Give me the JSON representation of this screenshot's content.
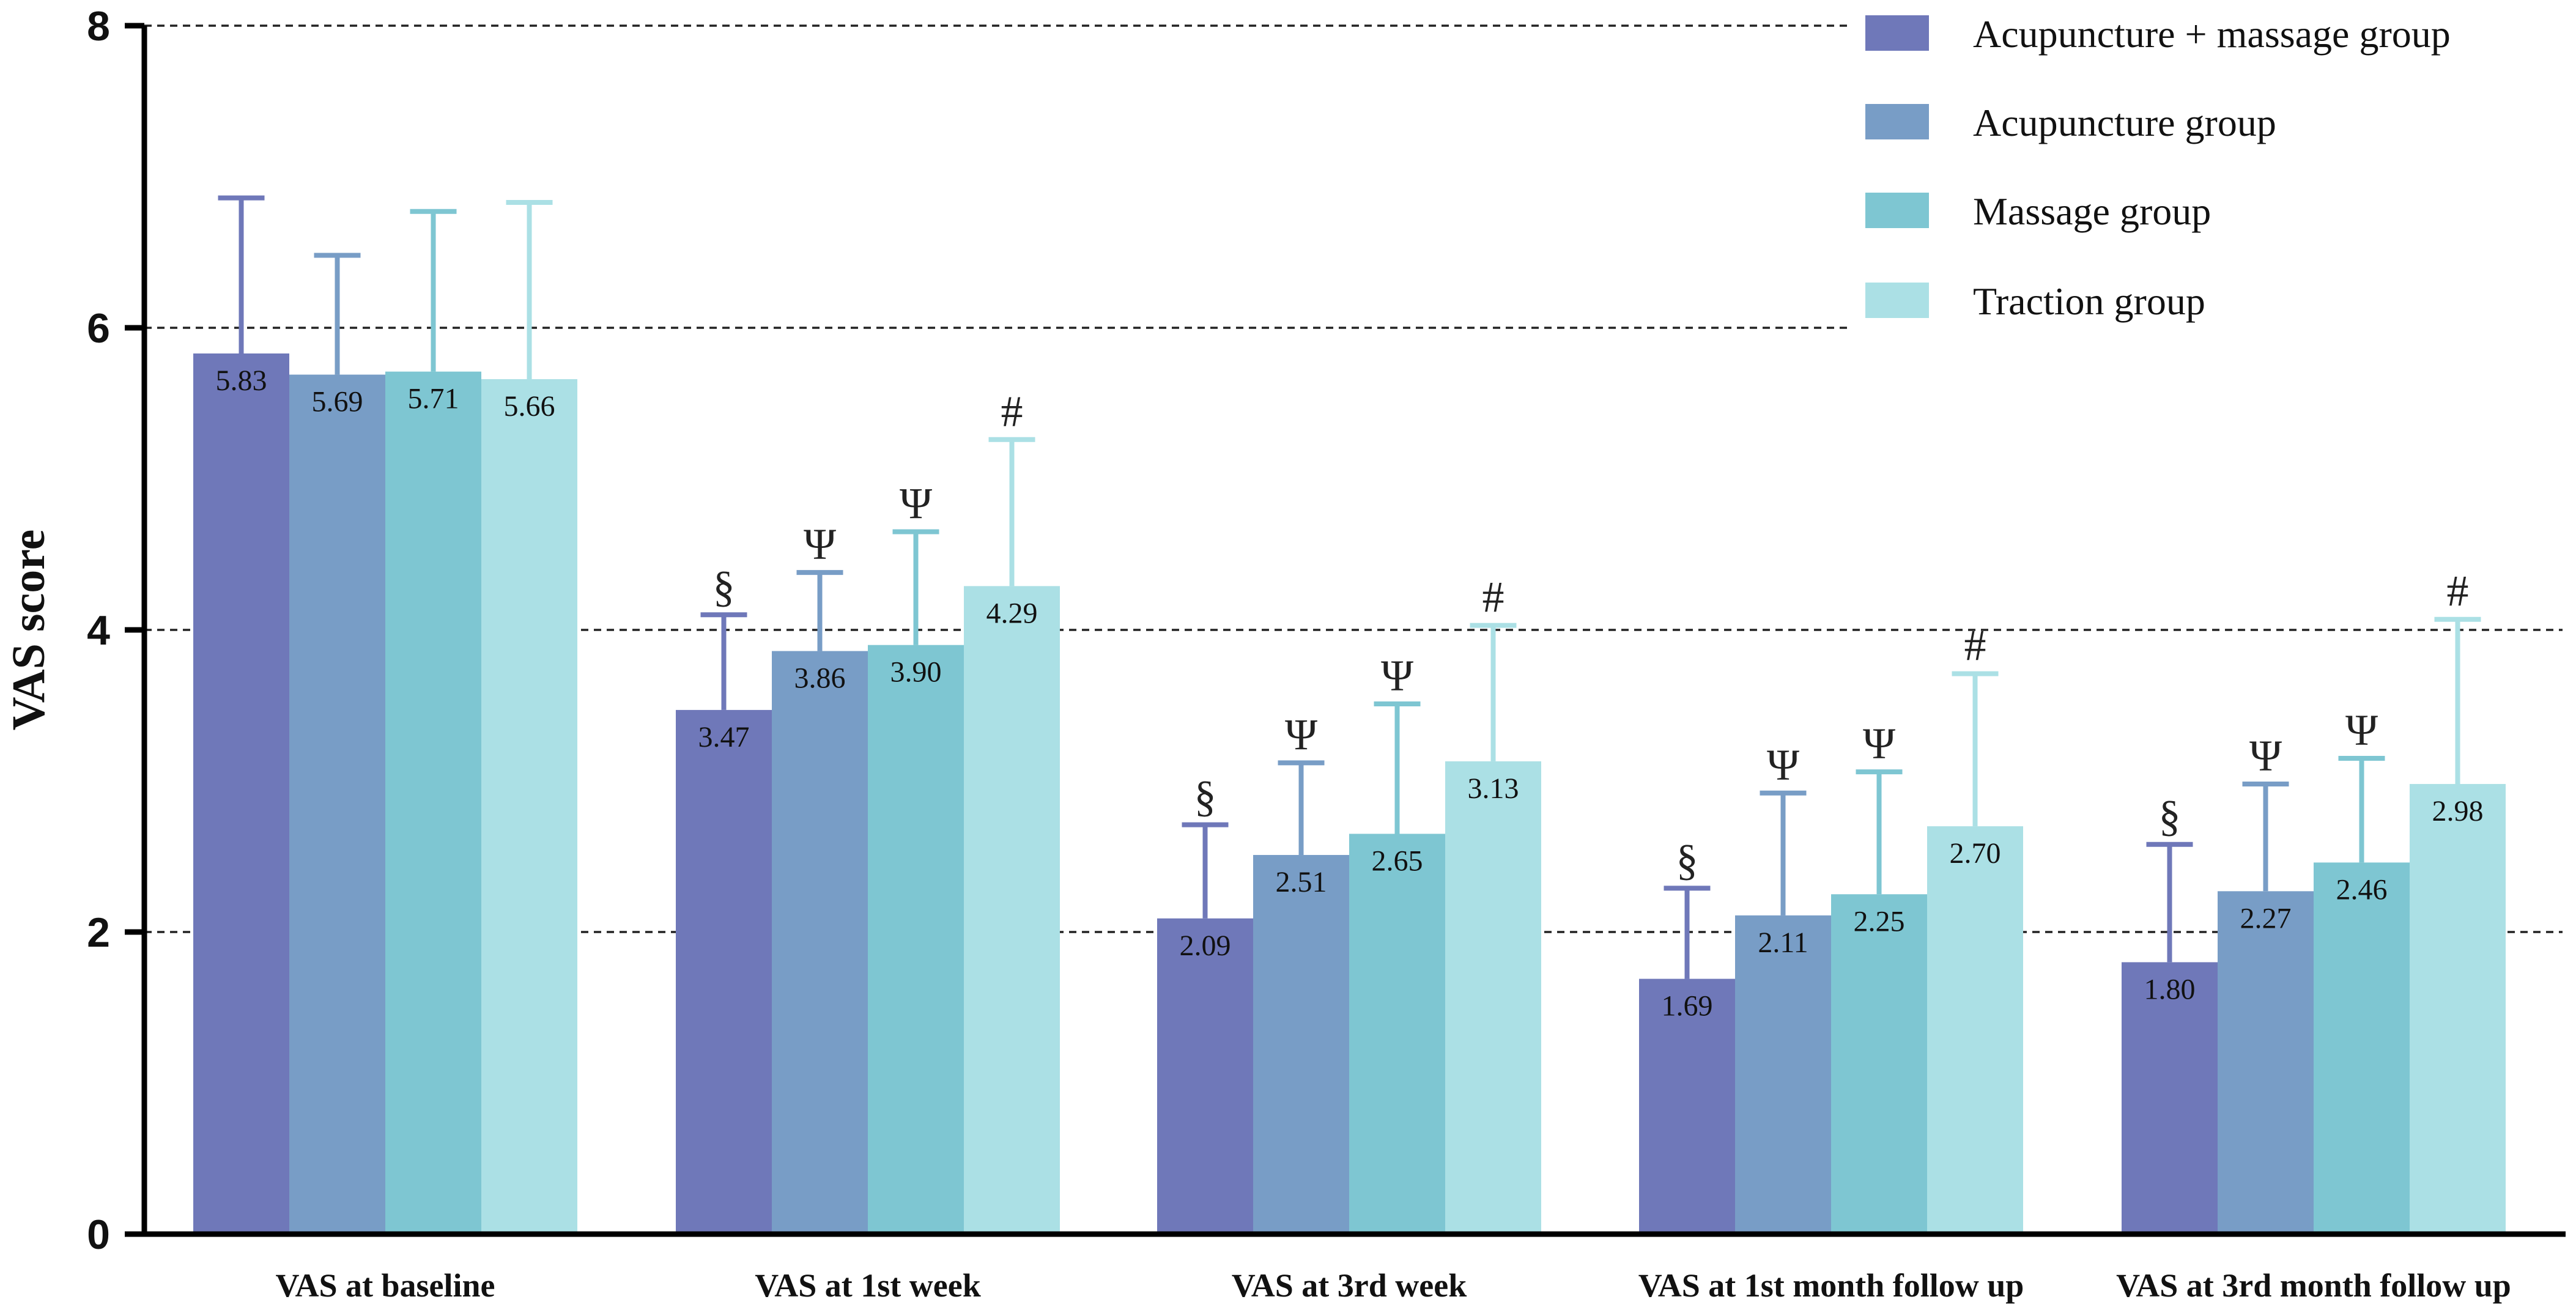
{
  "chart_data": {
    "type": "bar",
    "title": "",
    "xlabel": "",
    "ylabel": "VAS score",
    "ylim": [
      0,
      8
    ],
    "yticks": [
      "0",
      "2",
      "4",
      "6",
      "8"
    ],
    "grid": "dashed horizontal at 2, 4, 6, 8",
    "legend_position": "top-right",
    "categories": [
      "VAS at baseline",
      "VAS at 1st week",
      "VAS at 3rd week",
      "VAS at 1st month follow up",
      "VAS at 3rd month follow up"
    ],
    "series": [
      {
        "name": "Acupuncture + massage group",
        "color": "#6f78b9",
        "values": [
          5.83,
          3.47,
          2.09,
          1.69,
          1.8
        ],
        "labels": [
          "5.83",
          "3.47",
          "2.09",
          "1.69",
          "1.80"
        ],
        "error_upper": [
          6.86,
          4.1,
          2.71,
          2.29,
          2.58
        ],
        "markers": [
          "",
          "§",
          "§",
          "§",
          "§"
        ]
      },
      {
        "name": "Acupuncture group",
        "color": "#789dc6",
        "values": [
          5.69,
          3.86,
          2.51,
          2.11,
          2.27
        ],
        "labels": [
          "5.69",
          "3.86",
          "2.51",
          "2.11",
          "2.27"
        ],
        "error_upper": [
          6.48,
          4.38,
          3.12,
          2.92,
          2.98
        ],
        "markers": [
          "",
          "Ψ",
          "Ψ",
          "Ψ",
          "Ψ"
        ]
      },
      {
        "name": "Massage group",
        "color": "#7ec6d2",
        "values": [
          5.71,
          3.9,
          2.65,
          2.25,
          2.46
        ],
        "labels": [
          "5.71",
          "3.90",
          "2.65",
          "2.25",
          "2.46"
        ],
        "error_upper": [
          6.77,
          4.65,
          3.51,
          3.06,
          3.15
        ],
        "markers": [
          "",
          "Ψ",
          "Ψ",
          "Ψ",
          "Ψ"
        ]
      },
      {
        "name": "Traction group",
        "color": "#abe0e5",
        "values": [
          5.66,
          4.29,
          3.13,
          2.7,
          2.98
        ],
        "labels": [
          "5.66",
          "4.29",
          "3.13",
          "2.70",
          "2.98"
        ],
        "error_upper": [
          6.83,
          5.26,
          4.03,
          3.71,
          4.07
        ],
        "markers": [
          "",
          "#",
          "#",
          "#",
          "#"
        ]
      }
    ]
  }
}
